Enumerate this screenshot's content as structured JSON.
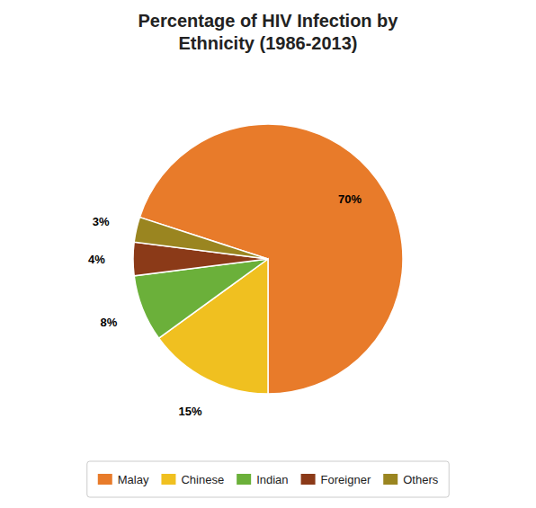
{
  "chart_data": {
    "type": "pie",
    "title": "Percentage of HIV Infection by\nEthnicity (1986-2013)",
    "categories": [
      "Malay",
      "Chinese",
      "Indian",
      "Foreigner",
      "Others"
    ],
    "values": [
      70,
      15,
      8,
      4,
      3
    ],
    "value_labels": [
      "70%",
      "15%",
      "8%",
      "4%",
      "3%"
    ],
    "colors": [
      "#E87B2A",
      "#F0C020",
      "#6BB03A",
      "#8B3A18",
      "#9A8520"
    ],
    "data_labels": true,
    "legend": "bottom"
  }
}
